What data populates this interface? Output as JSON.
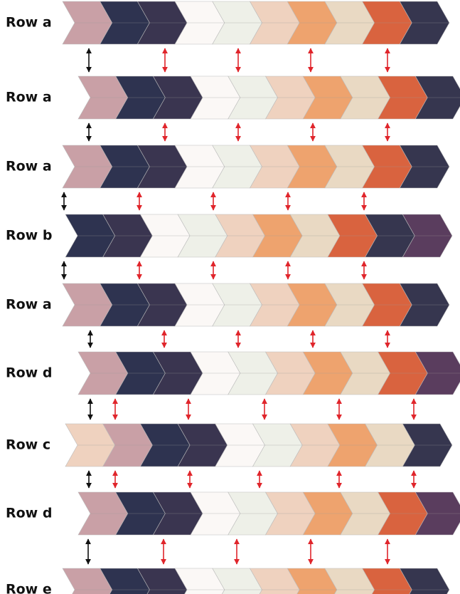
{
  "rows": [
    {
      "label": "Row a"
    },
    {
      "label": "Row a"
    },
    {
      "label": "Row a"
    },
    {
      "label": "Row b"
    },
    {
      "label": "Row a"
    },
    {
      "label": "Row d"
    },
    {
      "label": "Row c"
    },
    {
      "label": "Row d"
    },
    {
      "label": "Row e"
    }
  ]
}
